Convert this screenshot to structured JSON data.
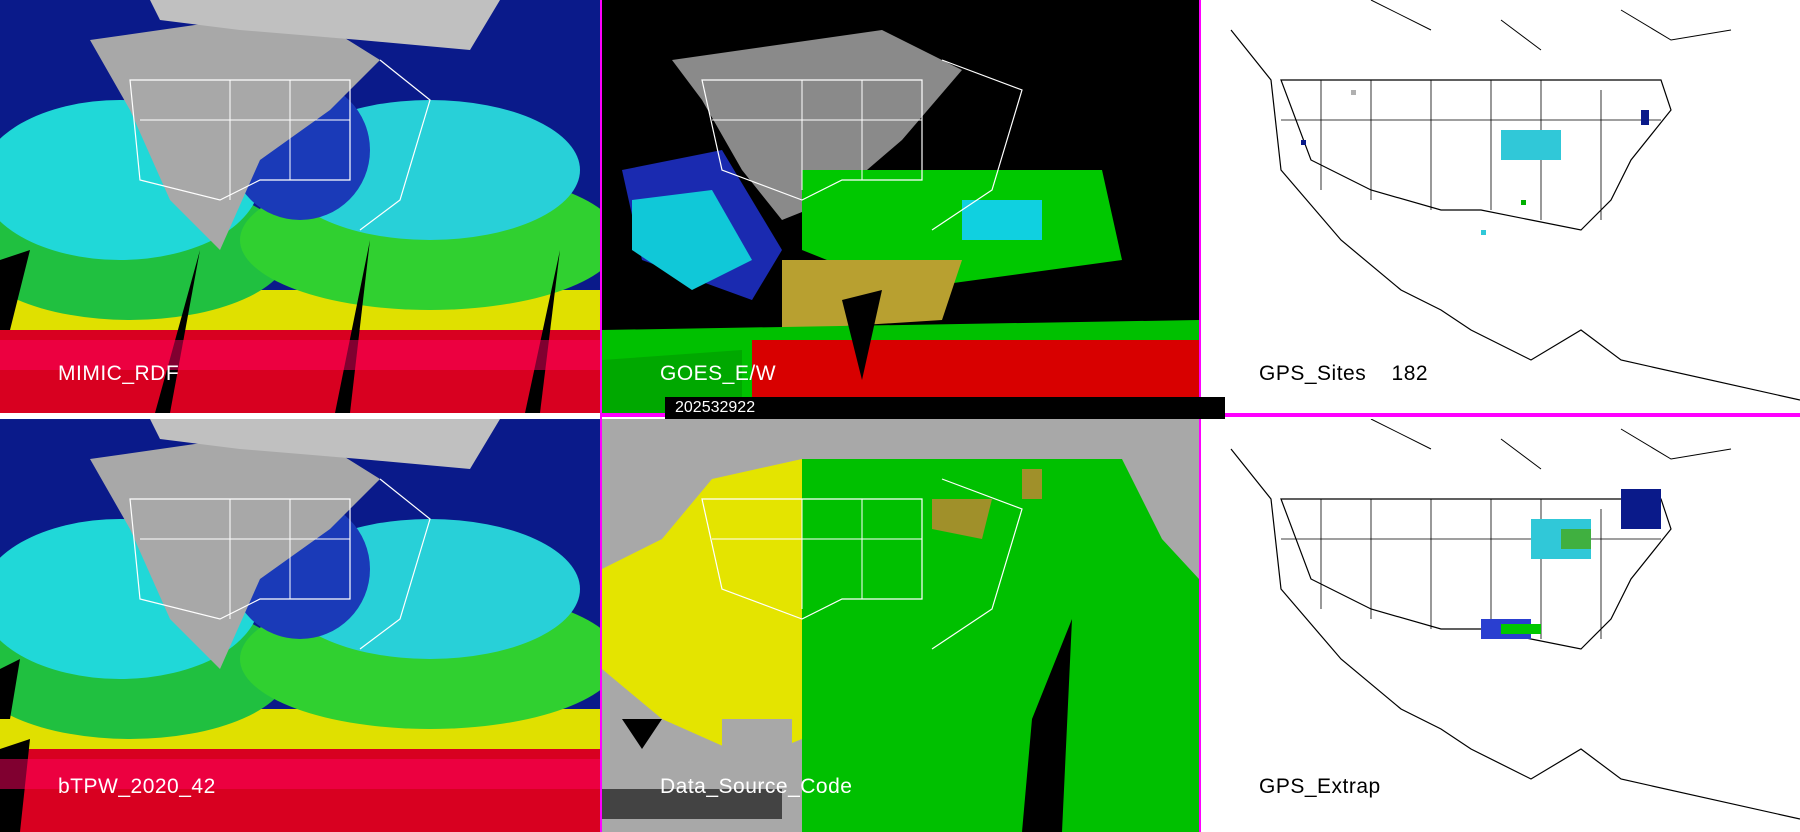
{
  "panels": [
    {
      "label": "MIMIC_RDF"
    },
    {
      "label": "GOES_E/W"
    },
    {
      "label": "GPS_Sites    182"
    },
    {
      "label": "bTPW_2020_42"
    },
    {
      "label": "Data_Source_Code"
    },
    {
      "label": "GPS_Extrap"
    }
  ],
  "timestamp": "202532922",
  "colors": {
    "divider": "#ff00ff",
    "palette": [
      "#b0b0b0",
      "#00188c",
      "#2a3fd0",
      "#18c8d8",
      "#00e6f0",
      "#00c800",
      "#00e000",
      "#b0a030",
      "#e8e800",
      "#e00000",
      "#ff0070"
    ],
    "source_code": [
      "#a8a8a8",
      "#e4e400",
      "#00c000",
      "#a0902a",
      "#000000"
    ]
  },
  "icons": [
    "north-america-map"
  ]
}
